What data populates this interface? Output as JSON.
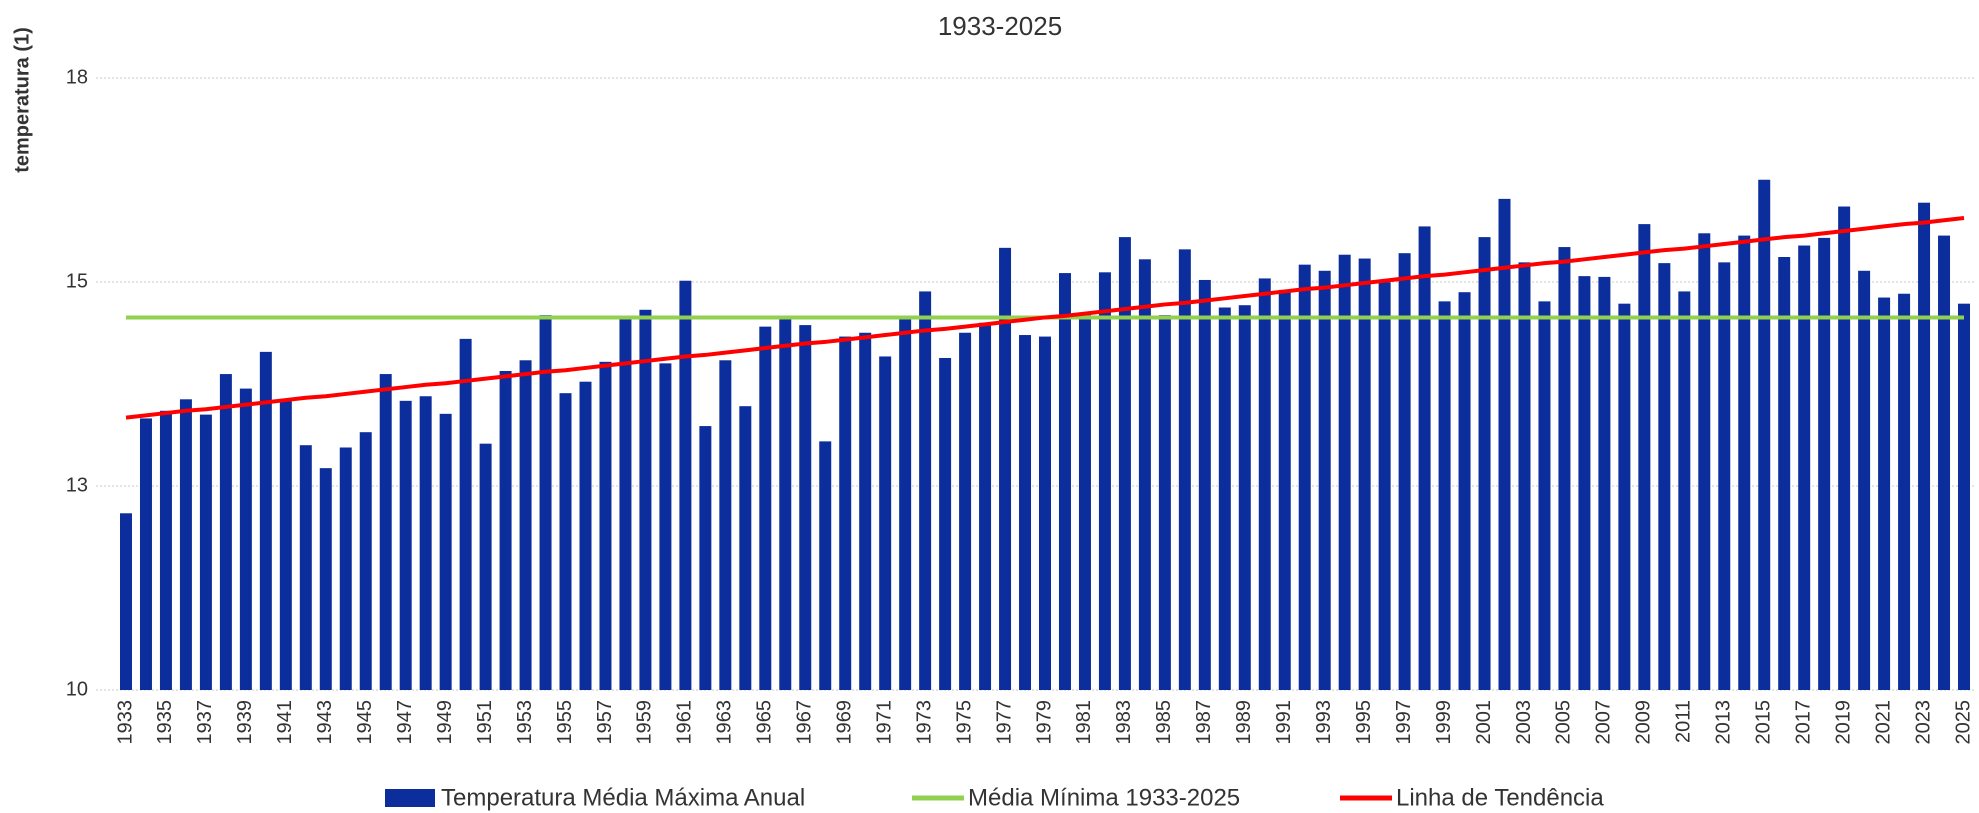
{
  "chart_data": {
    "type": "bar",
    "title": "1933-2025",
    "y_label": "temperatura (1)",
    "categories": [
      "1933",
      null,
      "1935",
      null,
      "1937",
      null,
      "1939",
      null,
      "1941",
      null,
      "1943",
      null,
      "1945",
      null,
      "1947",
      null,
      "1949",
      null,
      "1951",
      null,
      "1953",
      null,
      "1955",
      null,
      "1957",
      null,
      "1959",
      null,
      "1961",
      null,
      "1963",
      null,
      "1965",
      null,
      "1967",
      null,
      "1969",
      null,
      "1971",
      null,
      "1973",
      null,
      "1975",
      null,
      "1977",
      null,
      "1979",
      null,
      "1981",
      null,
      "1983",
      null,
      "1985",
      null,
      "1987",
      null,
      "1989",
      null,
      "1991",
      null,
      "1993",
      null,
      "1995",
      null,
      "1997",
      null,
      "1999",
      null,
      "2001",
      null,
      "2003",
      null,
      "2005",
      null,
      "2007",
      null,
      "2009",
      null,
      "2011",
      null,
      "2013",
      null,
      "2015",
      null,
      "2017",
      null,
      "2019",
      null,
      "2021",
      null,
      "2023",
      null,
      "2025"
    ],
    "series": [
      {
        "name": "Temperatura Média Máxima Anual",
        "type": "bar",
        "color": "#0c2d9c",
        "values": [
          12.31,
          13.55,
          13.65,
          13.8,
          13.6,
          14.13,
          13.94,
          14.42,
          13.8,
          13.2,
          12.9,
          13.17,
          13.37,
          14.13,
          13.78,
          13.84,
          13.61,
          14.59,
          13.22,
          14.17,
          14.31,
          14.9,
          13.88,
          14.03,
          14.29,
          14.87,
          14.97,
          14.27,
          15.35,
          13.45,
          14.31,
          13.71,
          14.75,
          14.87,
          14.77,
          13.25,
          14.62,
          14.67,
          14.36,
          14.85,
          15.21,
          14.34,
          14.67,
          14.8,
          15.78,
          14.64,
          14.62,
          15.45,
          14.9,
          15.46,
          15.92,
          15.63,
          14.9,
          15.76,
          15.36,
          15.0,
          15.03,
          15.38,
          15.23,
          15.56,
          15.48,
          15.69,
          15.64,
          15.33,
          15.71,
          16.06,
          15.08,
          15.2,
          15.92,
          16.42,
          15.59,
          15.08,
          15.79,
          15.41,
          15.4,
          15.05,
          16.09,
          15.58,
          15.21,
          15.97,
          15.59,
          15.94,
          16.67,
          15.66,
          15.81,
          15.91,
          16.32,
          15.48,
          15.13,
          15.18,
          16.37,
          15.94,
          15.05
        ]
      },
      {
        "name": "Média Mínima 1933-2025",
        "type": "line",
        "color": "#92d050",
        "values": [
          14.87,
          14.87,
          14.87,
          14.87,
          14.87,
          14.87,
          14.87,
          14.87,
          14.87,
          14.87,
          14.87,
          14.87,
          14.87,
          14.87,
          14.87,
          14.87,
          14.87,
          14.87,
          14.87,
          14.87,
          14.87,
          14.87,
          14.87,
          14.87,
          14.87,
          14.87,
          14.87,
          14.87,
          14.87,
          14.87,
          14.87,
          14.87,
          14.87,
          14.87,
          14.87,
          14.87,
          14.87,
          14.87,
          14.87,
          14.87,
          14.87,
          14.87,
          14.87,
          14.87,
          14.87,
          14.87,
          14.87,
          14.87,
          14.87,
          14.87,
          14.87,
          14.87,
          14.87,
          14.87,
          14.87,
          14.87,
          14.87,
          14.87,
          14.87,
          14.87,
          14.87,
          14.87,
          14.87,
          14.87,
          14.87,
          14.87,
          14.87,
          14.87,
          14.87,
          14.87,
          14.87,
          14.87,
          14.87,
          14.87,
          14.87,
          14.87,
          14.87,
          14.87,
          14.87,
          14.87,
          14.87,
          14.87,
          14.87,
          14.87,
          14.87,
          14.87,
          14.87,
          14.87,
          14.87,
          14.87,
          14.87,
          14.87,
          14.87
        ]
      },
      {
        "name": "Linha de Tendência",
        "type": "line",
        "color": "#ff0000",
        "values": [
          13.56,
          13.59,
          13.62,
          13.65,
          13.67,
          13.7,
          13.73,
          13.76,
          13.79,
          13.82,
          13.84,
          13.87,
          13.9,
          13.93,
          13.96,
          13.99,
          14.01,
          14.04,
          14.07,
          14.1,
          14.13,
          14.16,
          14.18,
          14.21,
          14.24,
          14.27,
          14.3,
          14.33,
          14.36,
          14.38,
          14.41,
          14.44,
          14.47,
          14.5,
          14.53,
          14.55,
          14.58,
          14.61,
          14.64,
          14.67,
          14.7,
          14.72,
          14.75,
          14.78,
          14.81,
          14.84,
          14.87,
          14.89,
          14.92,
          14.95,
          14.98,
          15.01,
          15.04,
          15.06,
          15.09,
          15.12,
          15.15,
          15.18,
          15.21,
          15.24,
          15.26,
          15.29,
          15.32,
          15.35,
          15.38,
          15.41,
          15.43,
          15.46,
          15.49,
          15.52,
          15.55,
          15.58,
          15.6,
          15.63,
          15.66,
          15.69,
          15.72,
          15.75,
          15.77,
          15.8,
          15.83,
          15.86,
          15.89,
          15.92,
          15.94,
          15.97,
          16.0,
          16.03,
          16.06,
          16.09,
          16.11,
          16.14,
          16.17
        ]
      }
    ],
    "ylim": [
      10,
      18
    ],
    "yticks": [
      10,
      {
        "value": 12.667,
        "label": "13"
      },
      {
        "value": 15.333,
        "label": "15"
      },
      18
    ],
    "grid": true
  }
}
